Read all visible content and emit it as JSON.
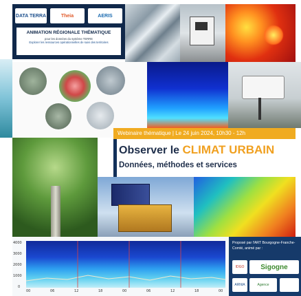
{
  "header": {
    "logos": [
      "DATA TERRA",
      "Theia",
      "AERIS"
    ],
    "title": "ANIMATION RÉGIONALE THÉMATIQUE",
    "subtitle": "pour les données du système TERRE",
    "tagline": "Explorer les ressources opérationnelles de suivi des territoires"
  },
  "banner": {
    "date_line": "Webinaire thématique | Le 24 juin 2024, 10h30 - 12h",
    "title_prefix": "Observer le ",
    "title_highlight": "CLIMAT URBAIN",
    "subtitle": "Données, méthodes et services"
  },
  "proposer": {
    "text": "Proposé par l'ART Bourgogne-Franche-Comté, animé par :",
    "logos": [
      "Sigogne",
      "IDGO",
      "ARNIA",
      "Agence"
    ]
  },
  "chart": {
    "y_ticks": [
      "4000",
      "3000",
      "2000",
      "1000",
      "0"
    ],
    "x_ticks": [
      "00",
      "06",
      "12",
      "18",
      "00",
      "06",
      "12",
      "18",
      "00"
    ]
  },
  "colors": {
    "navy": "#10284a",
    "orange": "#f0ab20",
    "blue_panel": "#163a6a"
  }
}
